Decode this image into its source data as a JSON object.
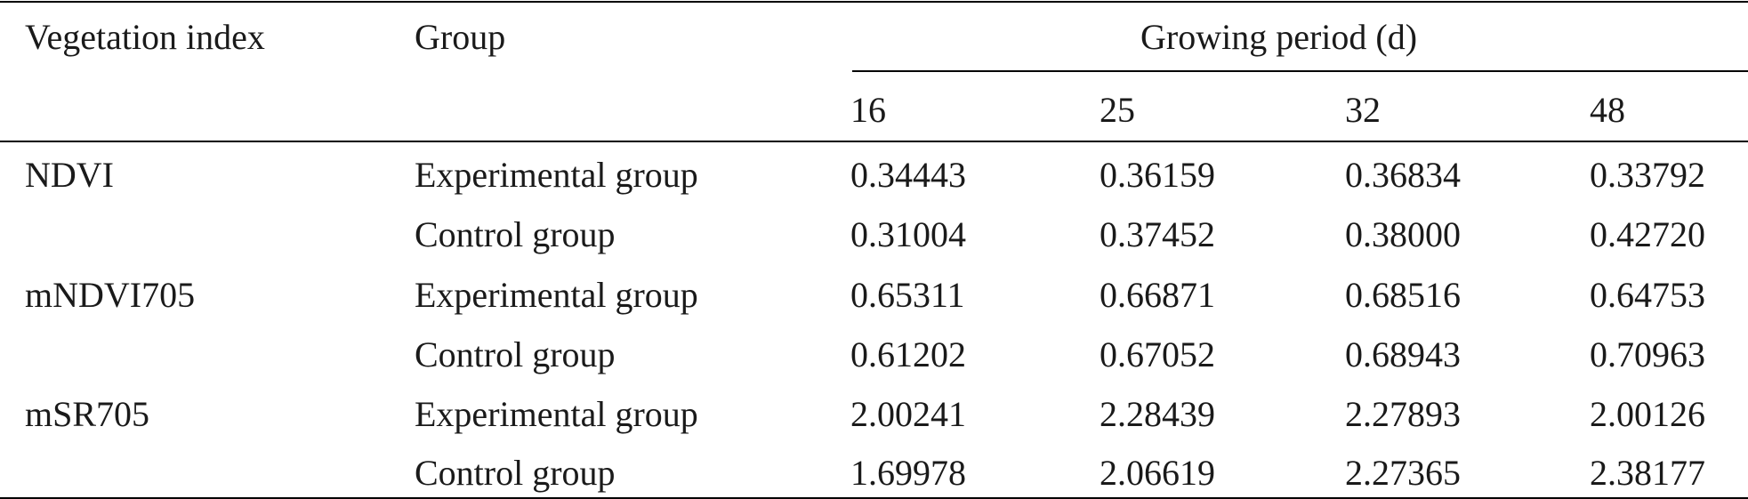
{
  "table": {
    "headers": {
      "vegetation_index": "Vegetation index",
      "group": "Group",
      "growing_period": "Growing period (d)",
      "days": [
        "16",
        "25",
        "32",
        "48"
      ]
    },
    "rows": [
      {
        "index": "NDVI",
        "group": "Experimental group",
        "values": [
          "0.34443",
          "0.36159",
          "0.36834",
          "0.33792"
        ]
      },
      {
        "index": "",
        "group": "Control group",
        "values": [
          "0.31004",
          "0.37452",
          "0.38000",
          "0.42720"
        ]
      },
      {
        "index": "mNDVI705",
        "group": "Experimental group",
        "values": [
          "0.65311",
          "0.66871",
          "0.68516",
          "0.64753"
        ]
      },
      {
        "index": "",
        "group": "Control group",
        "values": [
          "0.61202",
          "0.67052",
          "0.68943",
          "0.70963"
        ]
      },
      {
        "index": "mSR705",
        "group": "Experimental group",
        "values": [
          "2.00241",
          "2.28439",
          "2.27893",
          "2.00126"
        ]
      },
      {
        "index": "",
        "group": "Control group",
        "values": [
          "1.69978",
          "2.06619",
          "2.27365",
          "2.38177"
        ]
      }
    ]
  }
}
